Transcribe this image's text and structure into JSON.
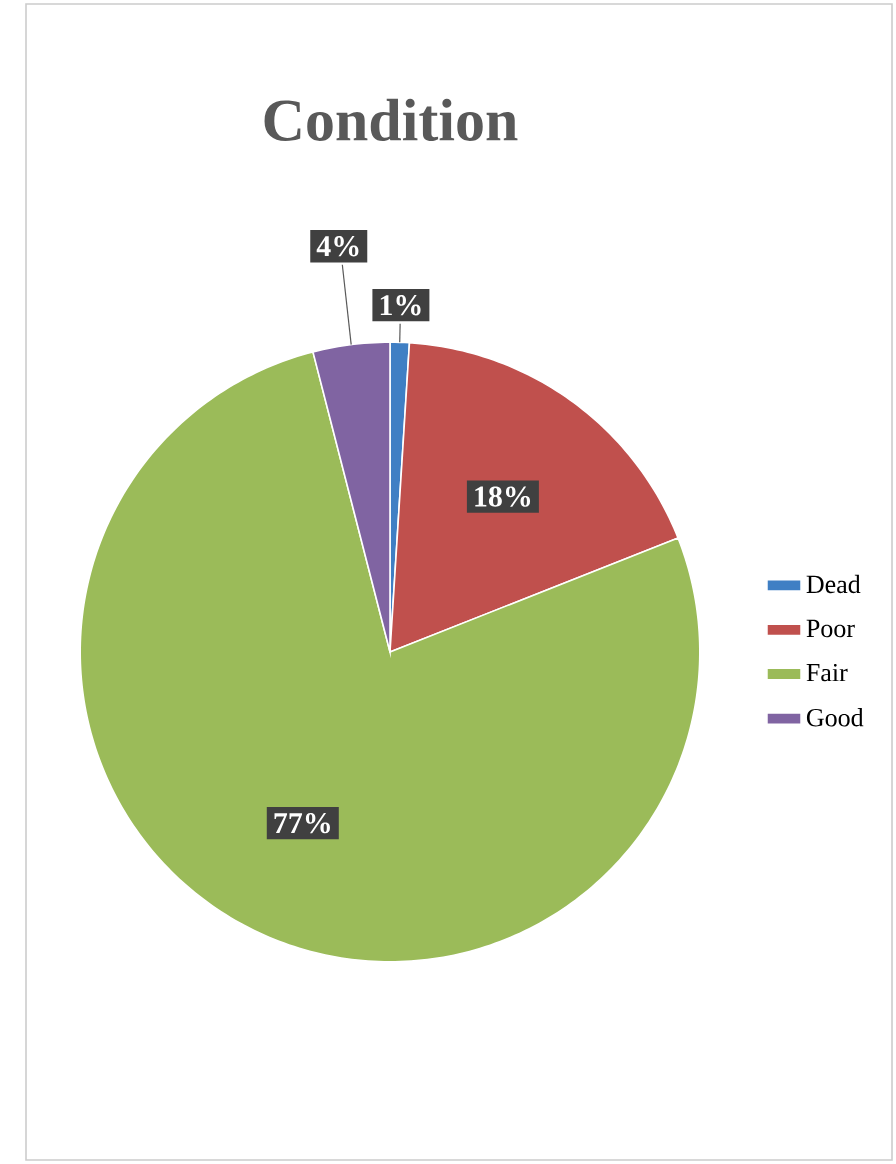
{
  "chart_data": {
    "type": "pie",
    "title": "Condition",
    "categories": [
      "Dead",
      "Poor",
      "Fair",
      "Good"
    ],
    "values": [
      1,
      18,
      77,
      4
    ],
    "colors": [
      "#3f7fc4",
      "#c0504d",
      "#9bbb59",
      "#8064a2"
    ],
    "value_labels": [
      "1%",
      "18%",
      "77%",
      "4%"
    ],
    "legend": "right"
  }
}
